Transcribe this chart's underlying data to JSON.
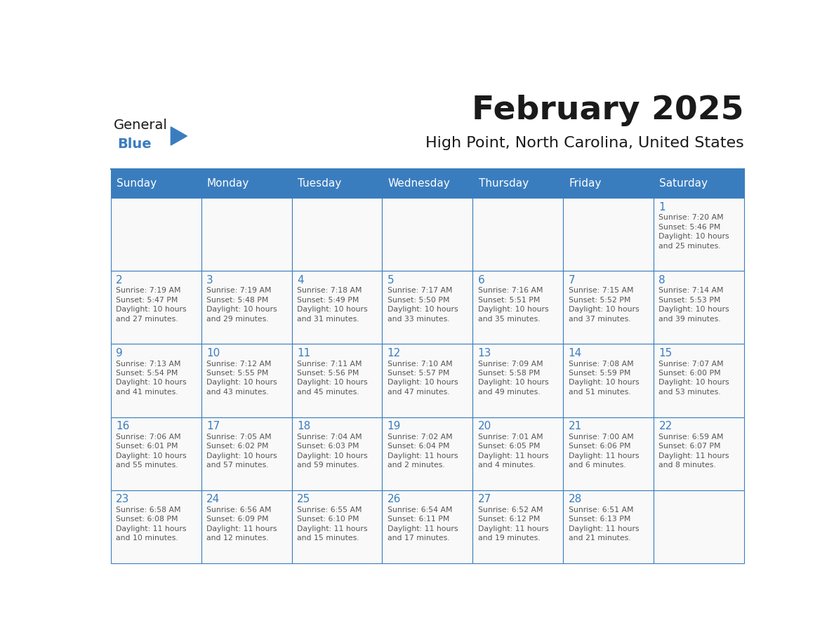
{
  "title": "February 2025",
  "subtitle": "High Point, North Carolina, United States",
  "days_of_week": [
    "Sunday",
    "Monday",
    "Tuesday",
    "Wednesday",
    "Thursday",
    "Friday",
    "Saturday"
  ],
  "header_bg": "#3a7dbf",
  "header_text": "#ffffff",
  "cell_bg": "#f9f9f9",
  "border_color": "#3a7dbf",
  "text_color": "#555555",
  "day_num_color": "#3a7dbf",
  "logo_general_color": "#1a1a1a",
  "logo_blue_color": "#3a7dbf",
  "calendar": [
    [
      null,
      null,
      null,
      null,
      null,
      null,
      {
        "day": 1,
        "sunrise": "7:20 AM",
        "sunset": "5:46 PM",
        "daylight": "10 hours and 25 minutes."
      }
    ],
    [
      {
        "day": 2,
        "sunrise": "7:19 AM",
        "sunset": "5:47 PM",
        "daylight": "10 hours and 27 minutes."
      },
      {
        "day": 3,
        "sunrise": "7:19 AM",
        "sunset": "5:48 PM",
        "daylight": "10 hours and 29 minutes."
      },
      {
        "day": 4,
        "sunrise": "7:18 AM",
        "sunset": "5:49 PM",
        "daylight": "10 hours and 31 minutes."
      },
      {
        "day": 5,
        "sunrise": "7:17 AM",
        "sunset": "5:50 PM",
        "daylight": "10 hours and 33 minutes."
      },
      {
        "day": 6,
        "sunrise": "7:16 AM",
        "sunset": "5:51 PM",
        "daylight": "10 hours and 35 minutes."
      },
      {
        "day": 7,
        "sunrise": "7:15 AM",
        "sunset": "5:52 PM",
        "daylight": "10 hours and 37 minutes."
      },
      {
        "day": 8,
        "sunrise": "7:14 AM",
        "sunset": "5:53 PM",
        "daylight": "10 hours and 39 minutes."
      }
    ],
    [
      {
        "day": 9,
        "sunrise": "7:13 AM",
        "sunset": "5:54 PM",
        "daylight": "10 hours and 41 minutes."
      },
      {
        "day": 10,
        "sunrise": "7:12 AM",
        "sunset": "5:55 PM",
        "daylight": "10 hours and 43 minutes."
      },
      {
        "day": 11,
        "sunrise": "7:11 AM",
        "sunset": "5:56 PM",
        "daylight": "10 hours and 45 minutes."
      },
      {
        "day": 12,
        "sunrise": "7:10 AM",
        "sunset": "5:57 PM",
        "daylight": "10 hours and 47 minutes."
      },
      {
        "day": 13,
        "sunrise": "7:09 AM",
        "sunset": "5:58 PM",
        "daylight": "10 hours and 49 minutes."
      },
      {
        "day": 14,
        "sunrise": "7:08 AM",
        "sunset": "5:59 PM",
        "daylight": "10 hours and 51 minutes."
      },
      {
        "day": 15,
        "sunrise": "7:07 AM",
        "sunset": "6:00 PM",
        "daylight": "10 hours and 53 minutes."
      }
    ],
    [
      {
        "day": 16,
        "sunrise": "7:06 AM",
        "sunset": "6:01 PM",
        "daylight": "10 hours and 55 minutes."
      },
      {
        "day": 17,
        "sunrise": "7:05 AM",
        "sunset": "6:02 PM",
        "daylight": "10 hours and 57 minutes."
      },
      {
        "day": 18,
        "sunrise": "7:04 AM",
        "sunset": "6:03 PM",
        "daylight": "10 hours and 59 minutes."
      },
      {
        "day": 19,
        "sunrise": "7:02 AM",
        "sunset": "6:04 PM",
        "daylight": "11 hours and 2 minutes."
      },
      {
        "day": 20,
        "sunrise": "7:01 AM",
        "sunset": "6:05 PM",
        "daylight": "11 hours and 4 minutes."
      },
      {
        "day": 21,
        "sunrise": "7:00 AM",
        "sunset": "6:06 PM",
        "daylight": "11 hours and 6 minutes."
      },
      {
        "day": 22,
        "sunrise": "6:59 AM",
        "sunset": "6:07 PM",
        "daylight": "11 hours and 8 minutes."
      }
    ],
    [
      {
        "day": 23,
        "sunrise": "6:58 AM",
        "sunset": "6:08 PM",
        "daylight": "11 hours and 10 minutes."
      },
      {
        "day": 24,
        "sunrise": "6:56 AM",
        "sunset": "6:09 PM",
        "daylight": "11 hours and 12 minutes."
      },
      {
        "day": 25,
        "sunrise": "6:55 AM",
        "sunset": "6:10 PM",
        "daylight": "11 hours and 15 minutes."
      },
      {
        "day": 26,
        "sunrise": "6:54 AM",
        "sunset": "6:11 PM",
        "daylight": "11 hours and 17 minutes."
      },
      {
        "day": 27,
        "sunrise": "6:52 AM",
        "sunset": "6:12 PM",
        "daylight": "11 hours and 19 minutes."
      },
      {
        "day": 28,
        "sunrise": "6:51 AM",
        "sunset": "6:13 PM",
        "daylight": "11 hours and 21 minutes."
      },
      null
    ]
  ]
}
